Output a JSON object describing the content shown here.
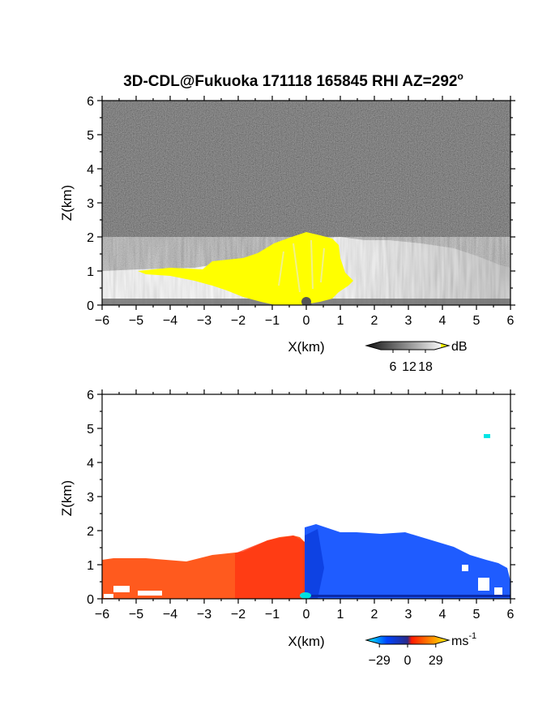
{
  "chart_data": [
    {
      "type": "heatmap",
      "title_main": "3D-CDL@Fukuoka 171118 165845 RHI AZ=292",
      "title_deg": "o",
      "xlabel": "X(km)",
      "ylabel": "Z(km)",
      "xlim": [
        -6,
        6
      ],
      "ylim": [
        0,
        6
      ],
      "xticks": [
        "-6",
        "-5",
        "-4",
        "-3",
        "-2",
        "-1",
        "0",
        "1",
        "2",
        "3",
        "4",
        "5",
        "6"
      ],
      "yticks": [
        "0",
        "1",
        "2",
        "3",
        "4",
        "5",
        "6"
      ],
      "colorbar": {
        "unit": "dB",
        "ticks": [
          "6",
          "12",
          "18"
        ],
        "range": [
          0,
          24
        ],
        "colors": [
          "#111111",
          "#ffffff",
          "#ffff00"
        ]
      },
      "description_fields": {
        "background_noise": "dark gray speckle",
        "echo_top_km": 1.9,
        "saturated_color": "#ffff00"
      }
    },
    {
      "type": "heatmap",
      "title": "",
      "xlabel": "X(km)",
      "ylabel": "Z(km)",
      "xlim": [
        -6,
        6
      ],
      "ylim": [
        0,
        6
      ],
      "xticks": [
        "-6",
        "-5",
        "-4",
        "-3",
        "-2",
        "-1",
        "0",
        "1",
        "2",
        "3",
        "4",
        "5",
        "6"
      ],
      "yticks": [
        "0",
        "1",
        "2",
        "3",
        "4",
        "5",
        "6"
      ],
      "colorbar": {
        "unit": "ms",
        "unit_sup": "-1",
        "ticks": [
          "-29",
          "0",
          "29"
        ],
        "range": [
          -40,
          40
        ],
        "colors": [
          "#00ffff",
          "#0033ff",
          "#ff2200",
          "#ffaa00",
          "#ffff00"
        ]
      },
      "regions": [
        {
          "x": [
            -6,
            0
          ],
          "z_top": 1.0,
          "value": 14,
          "color": "#ff5a1e"
        },
        {
          "x": [
            0,
            6
          ],
          "z_top": 1.9,
          "value": -22,
          "color": "#1f5cff"
        }
      ]
    }
  ]
}
